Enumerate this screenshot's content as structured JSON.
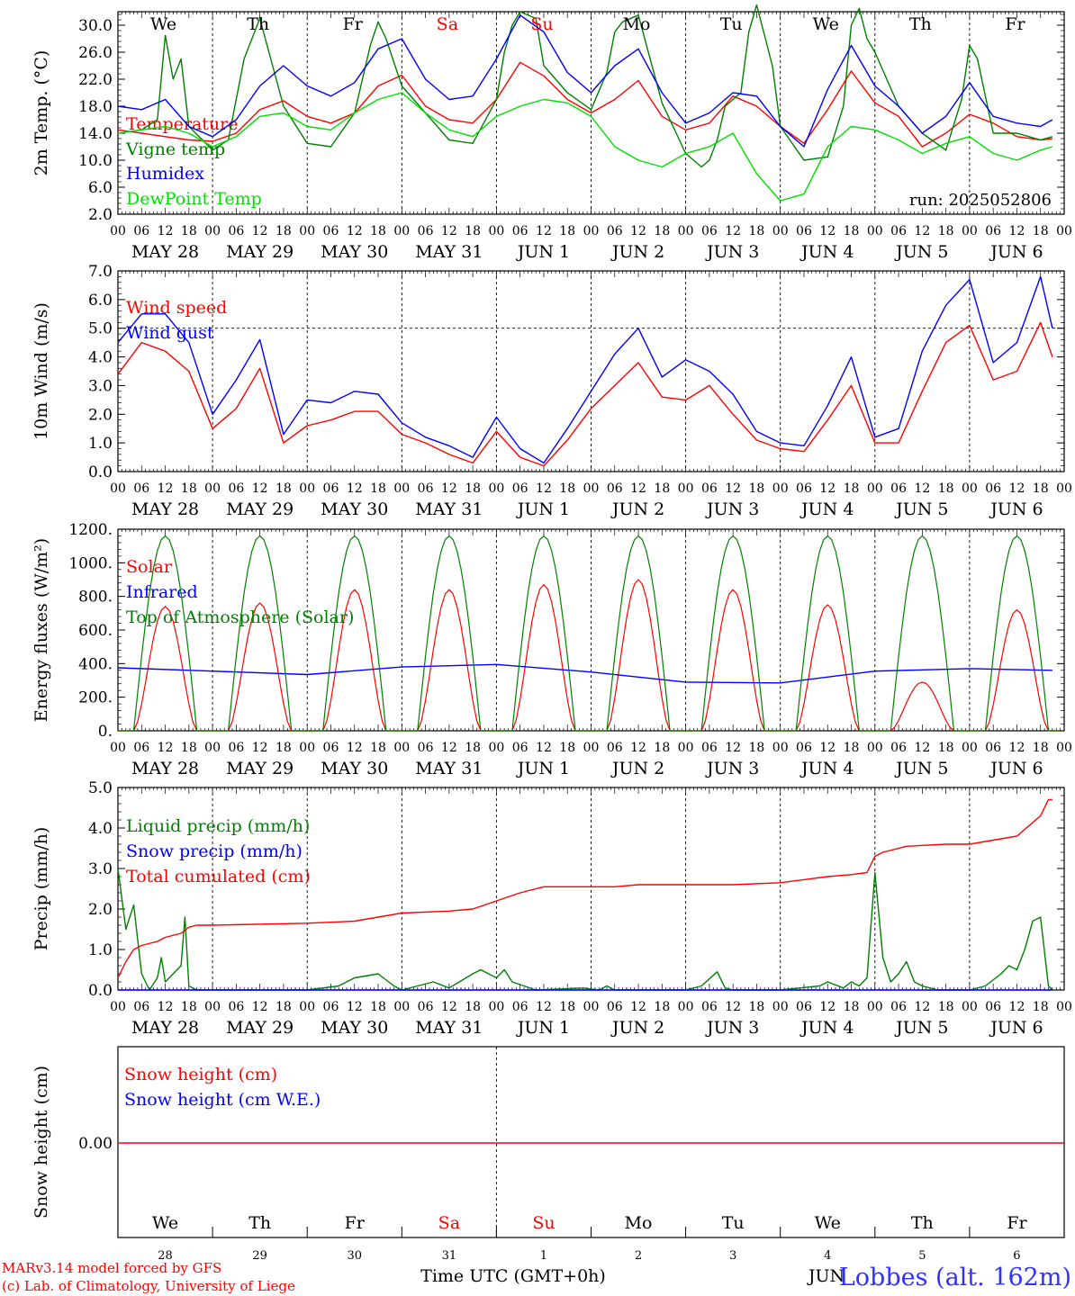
{
  "colors": {
    "red": "#ff0000",
    "darkgreen": "#008000",
    "blue": "#0000ff",
    "lightgreen": "#00e000",
    "axis": "#000000",
    "label_blue": "#3030ff"
  },
  "day_axis": {
    "hour_labels": [
      "00",
      "06",
      "12",
      "18"
    ],
    "date_labels": [
      "MAY 28",
      "MAY 29",
      "MAY 30",
      "MAY 31",
      "JUN  1",
      "JUN  2",
      "JUN  3",
      "JUN  4",
      "JUN  5",
      "JUN  6"
    ],
    "weekdays": [
      "We",
      "Th",
      "Fr",
      "Sa",
      "Su",
      "Mo",
      "Tu",
      "We",
      "Th",
      "Fr"
    ],
    "weekday_colors": [
      "#000000",
      "#000000",
      "#000000",
      "#ff0000",
      "#ff0000",
      "#000000",
      "#000000",
      "#000000",
      "#000000",
      "#000000"
    ],
    "day_numbers": [
      "28",
      "29",
      "30",
      "31",
      "1",
      "2",
      "3",
      "4",
      "5",
      "6"
    ]
  },
  "footer": {
    "model_line": "MARv3.14 model forced by GFS",
    "credit_line": "(c) Lab. of Climatology, University of Liege",
    "xlabel": "Time UTC (GMT+0h)",
    "station": "Lobbes (alt. 162m)",
    "overlap_text": "JUN"
  },
  "chart_data": [
    {
      "type": "line",
      "ylabel": "2m Temp. (°C)",
      "ylim": [
        2.0,
        32.0
      ],
      "yticks": [
        "2.0",
        "6.0",
        "10.0",
        "14.0",
        "18.0",
        "22.0",
        "26.0",
        "30.0"
      ],
      "x_unit": "hours since MAY 28 00 UTC",
      "annotation": "run: 2025052806",
      "series": [
        {
          "name": "Temperature",
          "color": "red",
          "x": [
            0,
            6,
            12,
            18,
            24,
            30,
            36,
            42,
            48,
            54,
            60,
            66,
            72,
            78,
            84,
            90,
            96,
            102,
            108,
            114,
            120,
            126,
            132,
            138,
            144,
            150,
            156,
            162,
            168,
            174,
            180,
            186,
            192,
            198,
            204,
            210,
            216,
            222,
            228,
            234,
            237
          ],
          "y": [
            14.5,
            14.0,
            13.5,
            13.0,
            12.8,
            14.0,
            17.5,
            18.8,
            16.5,
            15.5,
            17.0,
            21.0,
            22.6,
            18.0,
            16.0,
            15.5,
            19.0,
            24.5,
            22.5,
            19.0,
            17.0,
            19.0,
            21.8,
            16.5,
            14.5,
            15.5,
            19.5,
            18.0,
            15.0,
            12.5,
            17.5,
            23.2,
            18.5,
            16.5,
            12.0,
            14.0,
            16.8,
            15.5,
            13.5,
            13.0,
            13.2
          ]
        },
        {
          "name": "Vigne temp",
          "color": "darkgreen",
          "x": [
            0,
            6,
            10,
            12,
            14,
            16,
            18,
            24,
            28,
            32,
            36,
            42,
            48,
            54,
            60,
            64,
            66,
            68,
            72,
            78,
            84,
            90,
            96,
            98,
            100,
            102,
            106,
            108,
            114,
            120,
            124,
            126,
            128,
            132,
            138,
            144,
            148,
            150,
            152,
            154,
            158,
            160,
            162,
            166,
            168,
            174,
            180,
            184,
            186,
            188,
            190,
            192,
            198,
            204,
            210,
            214,
            216,
            218,
            222,
            228,
            234,
            237
          ],
          "y": [
            14.0,
            14.5,
            16.0,
            28.5,
            22.0,
            25.0,
            15.0,
            11.5,
            13.0,
            25.0,
            31.0,
            18.0,
            12.5,
            12.0,
            17.0,
            27.0,
            30.5,
            28.0,
            21.0,
            17.0,
            13.0,
            12.5,
            19.0,
            26.0,
            30.0,
            32.0,
            31.0,
            24.0,
            20.0,
            17.5,
            23.0,
            29.0,
            30.5,
            31.5,
            18.5,
            11.0,
            9.0,
            10.0,
            13.0,
            18.0,
            20.0,
            29.0,
            33.0,
            24.0,
            15.0,
            10.0,
            10.5,
            18.0,
            30.0,
            32.5,
            28.0,
            26.0,
            18.0,
            14.0,
            11.5,
            19.0,
            27.0,
            25.0,
            14.0,
            14.0,
            13.0,
            13.5
          ]
        },
        {
          "name": "Humidex",
          "color": "blue",
          "x": [
            0,
            6,
            12,
            18,
            24,
            30,
            36,
            42,
            48,
            54,
            60,
            66,
            72,
            78,
            84,
            90,
            96,
            102,
            108,
            114,
            120,
            126,
            132,
            138,
            144,
            150,
            156,
            162,
            168,
            174,
            180,
            186,
            192,
            198,
            204,
            210,
            216,
            222,
            228,
            234,
            237
          ],
          "y": [
            18.0,
            17.5,
            19.0,
            15.0,
            13.5,
            16.0,
            21.0,
            24.0,
            21.0,
            19.5,
            21.5,
            26.5,
            28.0,
            22.0,
            19.0,
            19.5,
            25.0,
            31.5,
            29.0,
            23.0,
            20.0,
            24.0,
            26.5,
            20.0,
            15.5,
            17.0,
            20.0,
            19.5,
            15.0,
            12.0,
            20.5,
            27.0,
            21.0,
            18.0,
            14.0,
            16.5,
            21.5,
            16.5,
            15.5,
            15.0,
            16.0
          ]
        },
        {
          "name": "DewPoint Temp",
          "color": "lightgreen",
          "x": [
            0,
            6,
            12,
            18,
            24,
            30,
            36,
            42,
            48,
            54,
            60,
            66,
            72,
            78,
            84,
            90,
            96,
            102,
            108,
            114,
            120,
            126,
            132,
            138,
            144,
            150,
            156,
            162,
            168,
            174,
            180,
            186,
            192,
            198,
            204,
            210,
            216,
            222,
            228,
            234,
            237
          ],
          "y": [
            14.0,
            14.5,
            15.0,
            14.0,
            12.0,
            13.5,
            16.5,
            17.0,
            15.0,
            14.5,
            17.0,
            19.0,
            20.0,
            17.0,
            14.5,
            13.5,
            16.5,
            18.0,
            19.0,
            18.5,
            16.5,
            12.0,
            10.0,
            9.0,
            11.0,
            12.0,
            14.0,
            8.0,
            4.0,
            5.0,
            12.0,
            15.0,
            14.5,
            13.0,
            11.0,
            12.5,
            13.5,
            11.0,
            10.0,
            11.5,
            12.0
          ]
        }
      ]
    },
    {
      "type": "line",
      "ylabel": "10m Wind (m/s)",
      "ylim": [
        0.0,
        7.0
      ],
      "yticks": [
        "0.0",
        "1.0",
        "2.0",
        "3.0",
        "4.0",
        "5.0",
        "6.0",
        "7.0"
      ],
      "reference_line": 5.0,
      "series": [
        {
          "name": "Wind speed",
          "color": "red",
          "x": [
            0,
            6,
            12,
            18,
            24,
            30,
            36,
            42,
            48,
            54,
            60,
            66,
            72,
            78,
            84,
            90,
            96,
            102,
            108,
            114,
            120,
            126,
            132,
            138,
            144,
            150,
            156,
            162,
            168,
            174,
            180,
            186,
            192,
            198,
            204,
            210,
            216,
            222,
            228,
            234,
            237
          ],
          "y": [
            3.4,
            4.5,
            4.2,
            3.5,
            1.5,
            2.2,
            3.6,
            1.0,
            1.6,
            1.8,
            2.1,
            2.1,
            1.3,
            1.0,
            0.6,
            0.3,
            1.4,
            0.5,
            0.2,
            1.1,
            2.2,
            3.0,
            3.8,
            2.6,
            2.5,
            3.0,
            2.0,
            1.1,
            0.8,
            0.7,
            1.8,
            3.0,
            1.0,
            1.0,
            2.8,
            4.5,
            5.1,
            3.2,
            3.5,
            5.2,
            4.0
          ]
        },
        {
          "name": "Wind gust",
          "color": "blue",
          "x": [
            0,
            6,
            12,
            18,
            24,
            30,
            36,
            42,
            48,
            54,
            60,
            66,
            72,
            78,
            84,
            90,
            96,
            102,
            108,
            114,
            120,
            126,
            132,
            138,
            144,
            150,
            156,
            162,
            168,
            174,
            180,
            186,
            192,
            198,
            204,
            210,
            216,
            222,
            228,
            234,
            237
          ],
          "y": [
            4.5,
            5.5,
            5.5,
            4.5,
            2.0,
            3.2,
            4.6,
            1.3,
            2.5,
            2.4,
            2.8,
            2.7,
            1.7,
            1.2,
            0.9,
            0.5,
            1.9,
            0.8,
            0.3,
            1.5,
            2.8,
            4.1,
            5.0,
            3.3,
            3.9,
            3.5,
            2.7,
            1.4,
            1.0,
            0.9,
            2.3,
            4.0,
            1.2,
            1.5,
            4.2,
            5.8,
            6.7,
            3.8,
            4.5,
            6.8,
            5.0
          ]
        }
      ]
    },
    {
      "type": "line",
      "ylabel": "Energy fluxes (W/m²)",
      "ylim": [
        0,
        1200
      ],
      "yticks": [
        "0.",
        "200.",
        "400.",
        "600.",
        "800.",
        "1000.",
        "1200."
      ],
      "series": [
        {
          "name": "Solar",
          "color": "red",
          "day_peaks": [
            740,
            760,
            840,
            840,
            870,
            900,
            840,
            750,
            290,
            720
          ]
        },
        {
          "name": "Infrared",
          "color": "blue",
          "x": [
            0,
            24,
            48,
            72,
            96,
            120,
            144,
            168,
            192,
            216,
            237
          ],
          "y": [
            375,
            355,
            335,
            380,
            395,
            350,
            290,
            285,
            355,
            370,
            360
          ]
        },
        {
          "name": "Top of Atmosphere (Solar)",
          "color": "darkgreen",
          "day_peaks": [
            1160,
            1160,
            1160,
            1160,
            1160,
            1160,
            1160,
            1160,
            1160,
            1160
          ]
        }
      ]
    },
    {
      "type": "line",
      "ylabel": "Precip (mm/h)",
      "ylim": [
        0.0,
        5.0
      ],
      "yticks": [
        "0.0",
        "1.0",
        "2.0",
        "3.0",
        "4.0",
        "5.0"
      ],
      "series": [
        {
          "name": "Liquid precip (mm/h)",
          "color": "darkgreen",
          "x": [
            0,
            2,
            3,
            4,
            6,
            8,
            10,
            11,
            12,
            14,
            16,
            17,
            18,
            20,
            24,
            48,
            56,
            60,
            66,
            70,
            72,
            80,
            84,
            90,
            92,
            96,
            98,
            100,
            106,
            118,
            122,
            124,
            126,
            132,
            144,
            146,
            148,
            152,
            154,
            156,
            168,
            178,
            180,
            184,
            186,
            188,
            190,
            192,
            194,
            196,
            198,
            200,
            202,
            204,
            208,
            216,
            220,
            224,
            226,
            228,
            230,
            232,
            234,
            236,
            237
          ],
          "y": [
            3.0,
            1.5,
            1.8,
            2.1,
            0.4,
            0.0,
            0.3,
            0.8,
            0.2,
            0.4,
            0.6,
            1.8,
            0.1,
            0.0,
            0.0,
            0.0,
            0.1,
            0.3,
            0.4,
            0.1,
            0.0,
            0.2,
            0.05,
            0.4,
            0.5,
            0.3,
            0.5,
            0.2,
            0.0,
            0.05,
            0.0,
            0.1,
            0.0,
            0.0,
            0.0,
            0.05,
            0.1,
            0.45,
            0.05,
            0.0,
            0.0,
            0.1,
            0.2,
            0.05,
            0.2,
            0.1,
            0.3,
            2.9,
            0.8,
            0.2,
            0.4,
            0.7,
            0.2,
            0.1,
            0.0,
            0.0,
            0.1,
            0.4,
            0.6,
            0.5,
            1.0,
            1.7,
            1.8,
            0.1,
            0.0
          ]
        },
        {
          "name": "Snow precip (mm/h)",
          "color": "blue",
          "x": [
            0,
            237
          ],
          "y": [
            0,
            0
          ]
        },
        {
          "name": "Total cumulated (cm)",
          "color": "red",
          "x": [
            0,
            2,
            4,
            6,
            10,
            12,
            16,
            18,
            20,
            24,
            48,
            60,
            66,
            72,
            84,
            90,
            96,
            102,
            108,
            120,
            126,
            132,
            144,
            156,
            168,
            180,
            186,
            190,
            192,
            194,
            200,
            210,
            216,
            228,
            234,
            236,
            237
          ],
          "y": [
            0.3,
            0.7,
            1.0,
            1.1,
            1.2,
            1.3,
            1.4,
            1.55,
            1.6,
            1.6,
            1.65,
            1.7,
            1.8,
            1.9,
            1.95,
            2.0,
            2.2,
            2.4,
            2.55,
            2.55,
            2.55,
            2.6,
            2.6,
            2.6,
            2.65,
            2.8,
            2.85,
            2.9,
            3.3,
            3.4,
            3.55,
            3.6,
            3.6,
            3.8,
            4.3,
            4.7,
            4.7
          ]
        }
      ]
    },
    {
      "type": "line",
      "ylabel": "Snow height (cm)",
      "yticks": [
        "0.00"
      ],
      "series": [
        {
          "name": "Snow height (cm)",
          "color": "red",
          "x": [
            0,
            237
          ],
          "y": [
            0,
            0
          ]
        },
        {
          "name": "Snow height (cm W.E.)",
          "color": "blue",
          "x": [
            0,
            237
          ],
          "y": [
            0,
            0
          ]
        }
      ]
    }
  ]
}
